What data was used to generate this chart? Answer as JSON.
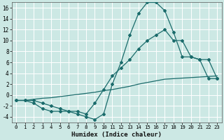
{
  "xlabel": "Humidex (Indice chaleur)",
  "background_color": "#cce8e4",
  "grid_color": "#ffffff",
  "line_color": "#1a6b6b",
  "xlim": [
    -0.5,
    23.5
  ],
  "ylim": [
    -5,
    17
  ],
  "xticks": [
    0,
    1,
    2,
    3,
    4,
    5,
    6,
    7,
    8,
    9,
    10,
    11,
    12,
    13,
    14,
    15,
    16,
    17,
    18,
    19,
    20,
    21,
    22,
    23
  ],
  "yticks": [
    -4,
    -2,
    0,
    2,
    4,
    6,
    8,
    10,
    12,
    14,
    16
  ],
  "curve1_x": [
    0,
    1,
    2,
    3,
    4,
    5,
    6,
    7,
    8,
    9,
    10,
    11,
    12,
    13,
    14,
    15,
    16,
    17,
    18,
    19,
    20,
    21,
    22,
    23
  ],
  "curve1_y": [
    -1,
    -1,
    -1.5,
    -2.5,
    -3,
    -3,
    -3,
    -3.5,
    -4,
    -4.5,
    -3.5,
    2,
    6,
    11,
    15,
    17,
    17,
    15.5,
    11.5,
    7,
    7,
    6.5,
    6.5,
    3
  ],
  "curve2_x": [
    0,
    1,
    2,
    3,
    4,
    5,
    6,
    7,
    8,
    9,
    10,
    11,
    12,
    13,
    14,
    15,
    16,
    17,
    18,
    19,
    20,
    21,
    22,
    23
  ],
  "curve2_y": [
    -1,
    -1,
    -1,
    -1.5,
    -2,
    -2.5,
    -3,
    -3,
    -3.5,
    -1.5,
    1,
    3.5,
    5,
    6.5,
    8.5,
    10,
    11,
    12,
    10,
    10,
    7,
    6.5,
    3,
    3
  ],
  "curve3_x": [
    0,
    1,
    2,
    3,
    4,
    5,
    6,
    7,
    8,
    9,
    10,
    11,
    12,
    13,
    14,
    15,
    16,
    17,
    18,
    19,
    20,
    21,
    22,
    23
  ],
  "curve3_y": [
    -1,
    -1,
    -0.8,
    -0.6,
    -0.5,
    -0.3,
    -0.1,
    0.1,
    0.3,
    0.5,
    0.8,
    1.0,
    1.3,
    1.6,
    2.0,
    2.3,
    2.6,
    2.9,
    3.0,
    3.1,
    3.2,
    3.3,
    3.4,
    3.5
  ],
  "marker_style": "D",
  "marker_size": 2.0,
  "linewidth": 0.9,
  "tick_fontsize": 5.5,
  "xlabel_fontsize": 6.5
}
